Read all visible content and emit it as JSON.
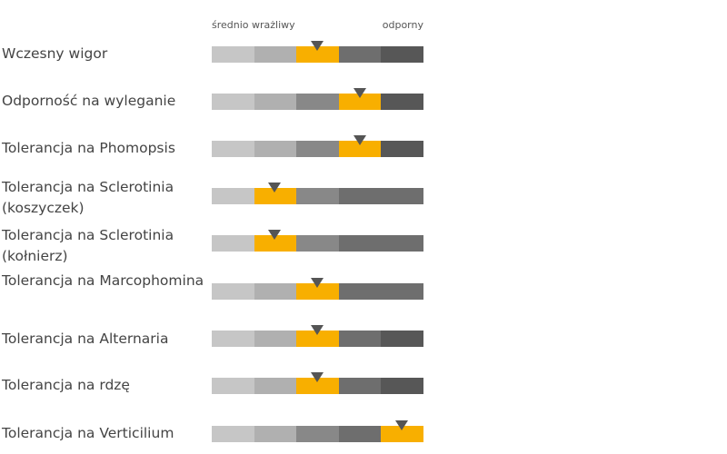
{
  "chart_data": {
    "type": "rating-bars",
    "scale_labels": {
      "left": "średnio wrażliwy",
      "right": "odporny"
    },
    "colors": {
      "highlight": "#F8AF00",
      "marker": "#555555",
      "levels": [
        "#C6C6C6",
        "#B0B0B0",
        "#888888",
        "#6E6E6E",
        "#575757"
      ]
    },
    "rows": [
      {
        "label": "Wczesny wigor",
        "segments": [
          1,
          1,
          1,
          1,
          1
        ],
        "highlight_index": 2
      },
      {
        "label": "Odporność na wyleganie",
        "segments": [
          1,
          1,
          1,
          1,
          1
        ],
        "highlight_index": 3
      },
      {
        "label": "Tolerancja na Phomopsis",
        "segments": [
          1,
          1,
          1,
          1,
          1
        ],
        "highlight_index": 3
      },
      {
        "label": "Tolerancja na Sclerotinia (koszyczek)",
        "segments": [
          1,
          1,
          1,
          2
        ],
        "highlight_index": 1
      },
      {
        "label": "Tolerancja na Sclerotinia (kołnierz)",
        "segments": [
          1,
          1,
          1,
          2
        ],
        "highlight_index": 1
      },
      {
        "label": "Tolerancja na Marcophomina",
        "segments": [
          1,
          1,
          1,
          2
        ],
        "highlight_index": 2
      },
      {
        "label": "Tolerancja na Alternaria",
        "segments": [
          1,
          1,
          1,
          1,
          1
        ],
        "highlight_index": 2
      },
      {
        "label": "Tolerancja na rdzę",
        "segments": [
          1,
          1,
          1,
          1,
          1
        ],
        "highlight_index": 2
      },
      {
        "label": "Tolerancja na Verticilium",
        "segments": [
          1,
          1,
          1,
          1,
          1
        ],
        "highlight_index": 4
      }
    ]
  }
}
